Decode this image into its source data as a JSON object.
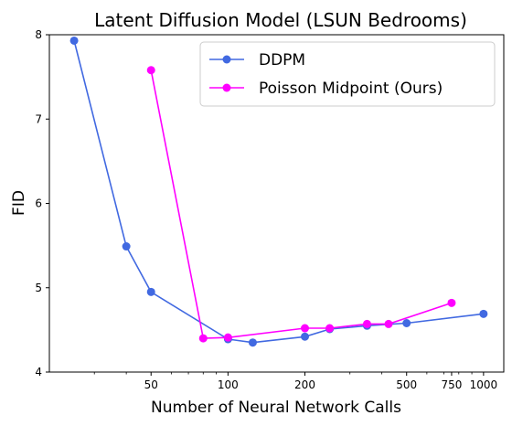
{
  "chart_data": {
    "type": "line",
    "title": "Latent Diffusion Model (LSUN Bedrooms)",
    "xlabel": "Number of Neural Network Calls",
    "ylabel": "FID",
    "xscale": "log",
    "xlim": [
      20,
      1200
    ],
    "ylim": [
      4,
      8
    ],
    "xticks": [
      50,
      100,
      200,
      500,
      750,
      1000
    ],
    "xtick_labels": [
      "50",
      "100",
      "200",
      "500",
      "750",
      "1000"
    ],
    "yticks": [
      4,
      5,
      6,
      7,
      8
    ],
    "ytick_labels": [
      "4",
      "5",
      "6",
      "7",
      "8"
    ],
    "grid": false,
    "legend_position": "top-right",
    "series": [
      {
        "name": "DDPM",
        "color": "#4169E1",
        "x": [
          25,
          40,
          50,
          100,
          125,
          200,
          250,
          350,
          500,
          1000
        ],
        "y": [
          7.93,
          5.49,
          4.95,
          4.39,
          4.35,
          4.42,
          4.51,
          4.55,
          4.58,
          4.69
        ]
      },
      {
        "name": "Poisson Midpoint (Ours)",
        "color": "#FF00FF",
        "x": [
          50,
          80,
          100,
          200,
          250,
          350,
          425,
          750
        ],
        "y": [
          7.58,
          4.4,
          4.41,
          4.52,
          4.52,
          4.57,
          4.57,
          4.82
        ]
      }
    ]
  }
}
